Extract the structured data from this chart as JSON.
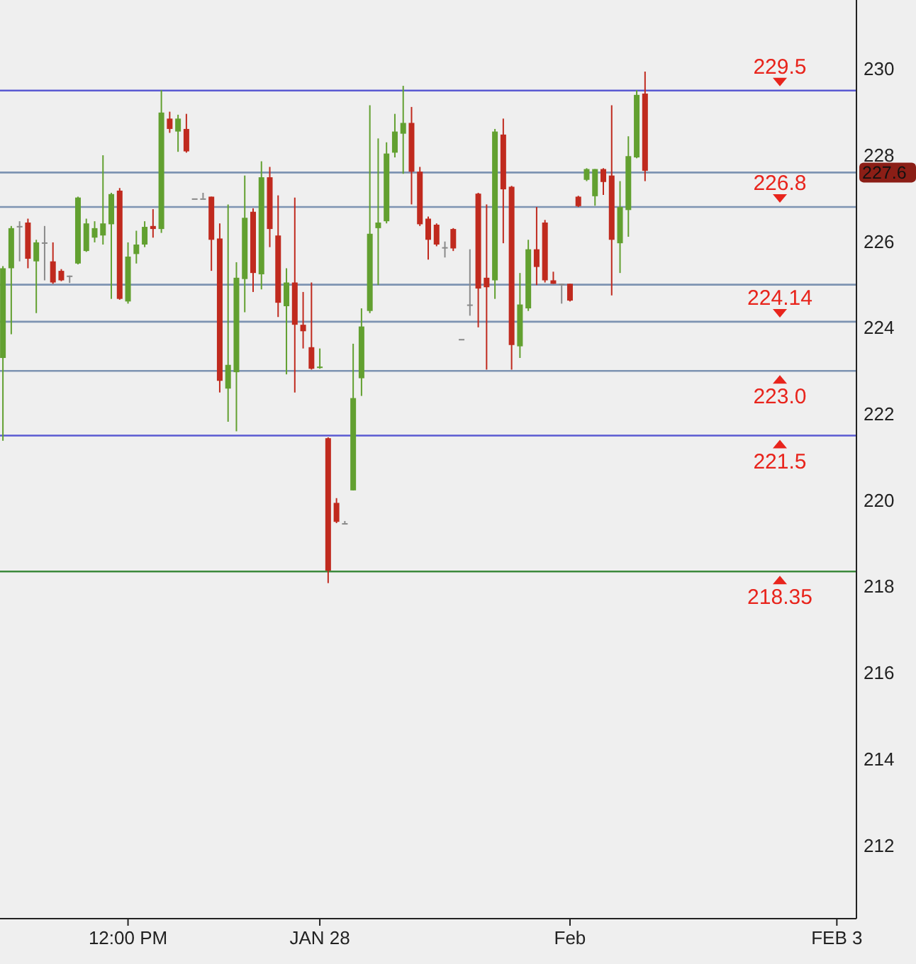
{
  "chart_data": {
    "type": "candlestick",
    "categories": [
      null,
      null,
      null,
      null,
      null,
      null,
      null,
      null,
      null,
      null,
      null,
      null,
      null,
      null,
      null,
      "12:00 PM",
      null,
      null,
      null,
      null,
      null,
      null,
      null,
      null,
      null,
      null,
      null,
      null,
      null,
      null,
      null,
      null,
      null,
      null,
      null,
      null,
      null,
      null,
      "JAN 28",
      null,
      null,
      null,
      null,
      null,
      null,
      null,
      null,
      null,
      null,
      null,
      null,
      null,
      null,
      null,
      null,
      null,
      null,
      null,
      null,
      null,
      null,
      null,
      null,
      null,
      null,
      null,
      null,
      null,
      "Feb",
      null,
      null,
      null,
      null,
      null,
      null,
      null,
      null,
      null,
      null,
      null,
      null,
      null,
      null,
      null,
      null,
      null,
      null,
      null,
      null,
      null,
      null,
      null,
      null,
      null,
      null,
      null,
      null,
      null,
      null,
      null,
      "FEB 3",
      null,
      null
    ],
    "ohlc": [
      [
        223.3,
        225.43,
        221.38,
        225.38
      ],
      [
        225.38,
        226.36,
        223.85,
        226.31
      ],
      [
        226.36,
        226.47,
        225.54,
        226.36
      ],
      [
        226.44,
        226.53,
        225.38,
        225.6
      ],
      [
        225.54,
        226.04,
        224.34,
        225.98
      ],
      [
        225.98,
        226.36,
        225.1,
        225.98
      ],
      [
        225.54,
        225.98,
        225.02,
        225.05
      ],
      [
        225.32,
        225.36,
        225.08,
        225.1
      ],
      [
        225.21,
        225.21,
        225.04,
        225.21
      ],
      [
        225.49,
        227.04,
        225.47,
        227.02
      ],
      [
        225.78,
        226.53,
        225.76,
        226.42
      ],
      [
        226.09,
        226.47,
        225.98,
        226.31
      ],
      [
        226.14,
        228.0,
        225.93,
        226.42
      ],
      [
        226.4,
        227.13,
        224.67,
        227.1
      ],
      [
        227.18,
        227.24,
        224.65,
        224.67
      ],
      [
        224.61,
        225.98,
        224.56,
        225.65
      ],
      [
        225.71,
        226.25,
        225.49,
        225.93
      ],
      [
        225.93,
        226.47,
        225.87,
        226.34
      ],
      [
        226.36,
        226.75,
        226.09,
        226.29
      ],
      [
        226.29,
        229.51,
        226.2,
        228.99
      ],
      [
        228.85,
        229.01,
        228.52,
        228.61
      ],
      [
        228.55,
        228.94,
        228.08,
        228.85
      ],
      [
        228.61,
        228.96,
        228.06,
        228.09
      ],
      [
        227.0,
        227.0,
        227.0,
        227.0
      ],
      [
        227.0,
        227.13,
        227.0,
        227.0
      ],
      [
        227.04,
        227.04,
        225.32,
        226.04
      ],
      [
        226.07,
        226.42,
        222.5,
        222.77
      ],
      [
        222.59,
        226.86,
        221.82,
        223.14
      ],
      [
        222.97,
        225.52,
        221.6,
        225.16
      ],
      [
        225.13,
        227.53,
        224.36,
        226.55
      ],
      [
        226.69,
        226.77,
        224.83,
        225.27
      ],
      [
        225.24,
        227.86,
        224.89,
        227.49
      ],
      [
        227.49,
        227.73,
        225.87,
        226.29
      ],
      [
        226.14,
        227.07,
        224.25,
        224.58
      ],
      [
        224.5,
        225.38,
        222.92,
        225.05
      ],
      [
        225.05,
        227.02,
        222.5,
        224.07
      ],
      [
        224.07,
        224.83,
        223.52,
        223.92
      ],
      [
        223.55,
        225.05,
        223.03,
        223.05
      ],
      [
        223.08,
        223.52,
        223.05,
        223.1
      ],
      [
        221.44,
        221.46,
        218.08,
        218.37
      ],
      [
        219.94,
        220.05,
        219.47,
        219.5
      ],
      [
        219.47,
        219.52,
        219.47,
        219.47
      ],
      [
        220.23,
        223.63,
        220.23,
        222.37
      ],
      [
        222.83,
        224.45,
        222.42,
        224.03
      ],
      [
        224.39,
        229.16,
        224.34,
        226.18
      ],
      [
        226.31,
        228.39,
        224.99,
        226.44
      ],
      [
        226.47,
        228.3,
        226.42,
        228.04
      ],
      [
        228.06,
        228.96,
        227.95,
        228.55
      ],
      [
        228.5,
        229.61,
        227.57,
        228.75
      ],
      [
        228.75,
        229.12,
        226.86,
        227.62
      ],
      [
        227.62,
        227.73,
        226.36,
        226.4
      ],
      [
        226.53,
        226.58,
        225.58,
        226.04
      ],
      [
        226.39,
        226.42,
        225.89,
        225.93
      ],
      [
        225.87,
        226.0,
        225.63,
        225.87
      ],
      [
        226.29,
        226.31,
        225.78,
        225.84
      ],
      [
        223.74,
        223.74,
        223.74,
        223.74
      ],
      [
        224.54,
        225.82,
        224.28,
        224.54
      ],
      [
        227.11,
        227.13,
        224.01,
        224.91
      ],
      [
        225.16,
        226.86,
        223.03,
        224.94
      ],
      [
        225.1,
        228.61,
        224.67,
        228.55
      ],
      [
        228.48,
        228.85,
        225.96,
        227.21
      ],
      [
        227.27,
        227.29,
        223.03,
        223.6
      ],
      [
        223.57,
        225.27,
        223.3,
        224.54
      ],
      [
        224.45,
        226.04,
        224.39,
        225.82
      ],
      [
        225.82,
        226.8,
        224.99,
        225.41
      ],
      [
        226.44,
        226.5,
        225.05,
        225.1
      ],
      [
        225.1,
        225.3,
        225.02,
        225.02
      ],
      [
        225.02,
        225.02,
        224.56,
        225.02
      ],
      [
        225.02,
        225.02,
        224.61,
        224.63
      ],
      [
        227.04,
        227.06,
        226.8,
        226.82
      ],
      [
        227.43,
        227.7,
        227.4,
        227.68
      ],
      [
        227.05,
        227.68,
        226.83,
        227.68
      ],
      [
        227.68,
        227.7,
        227.08,
        227.38
      ],
      [
        227.53,
        229.16,
        224.75,
        226.04
      ],
      [
        225.96,
        227.4,
        225.27,
        226.8
      ],
      [
        226.73,
        228.44,
        226.11,
        227.98
      ],
      [
        227.95,
        229.51,
        227.93,
        229.4
      ],
      [
        229.43,
        229.94,
        227.4,
        227.64
      ],
      null,
      null,
      null,
      null,
      null,
      null,
      null,
      null,
      null,
      null,
      null,
      null,
      null,
      null,
      null,
      null,
      null,
      null,
      null,
      null,
      null,
      null,
      null,
      null,
      null
    ],
    "colors": [
      "#62a030",
      "#62a030",
      "#8a8a8a",
      "#c02a1e",
      "#62a030",
      "#8a8a8a",
      "#c02a1e",
      "#c02a1e",
      "#8a8a8a",
      "#62a030",
      "#62a030",
      "#62a030",
      "#62a030",
      "#62a030",
      "#c02a1e",
      "#62a030",
      "#62a030",
      "#62a030",
      "#c02a1e",
      "#62a030",
      "#c02a1e",
      "#62a030",
      "#c02a1e",
      "#8a8a8a",
      "#8a8a8a",
      "#c02a1e",
      "#c02a1e",
      "#62a030",
      "#62a030",
      "#62a030",
      "#c02a1e",
      "#62a030",
      "#c02a1e",
      "#c02a1e",
      "#62a030",
      "#c02a1e",
      "#c02a1e",
      "#c02a1e",
      "#62a030",
      "#c02a1e",
      "#c02a1e",
      "#8a8a8a",
      "#62a030",
      "#62a030",
      "#62a030",
      "#62a030",
      "#62a030",
      "#62a030",
      "#62a030",
      "#c02a1e",
      "#c02a1e",
      "#c02a1e",
      "#c02a1e",
      "#8a8a8a",
      "#c02a1e",
      "#8a8a8a",
      "#8a8a8a",
      "#c02a1e",
      "#c02a1e",
      "#62a030",
      "#c02a1e",
      "#c02a1e",
      "#62a030",
      "#62a030",
      "#c02a1e",
      "#c02a1e",
      "#c02a1e",
      "#8a8a8a",
      "#c02a1e",
      "#c02a1e",
      "#62a030",
      "#62a030",
      "#c02a1e",
      "#c02a1e",
      "#62a030",
      "#62a030",
      "#62a030",
      "#c02a1e",
      null,
      null,
      null,
      null,
      null,
      null,
      null,
      null,
      null,
      null,
      null,
      null,
      null,
      null,
      null,
      null,
      null,
      null,
      null,
      null,
      null,
      null,
      null,
      null,
      null
    ],
    "ylim": [
      210.3,
      231.6
    ],
    "yticks": [
      212,
      214,
      216,
      218,
      220,
      222,
      224,
      226,
      228,
      230
    ],
    "ref_lines": [
      {
        "axis": "y",
        "value": 229.5,
        "label": "229.5",
        "color": "#5a5ad2"
      },
      {
        "axis": "y",
        "value": 227.6,
        "label": "227.6",
        "color": "#7d93b2"
      },
      {
        "axis": "y",
        "value": 226.8,
        "label": "226.8",
        "color": "#7d93b2"
      },
      {
        "axis": "y",
        "value": 225.0,
        "color": "#7d93b2"
      },
      {
        "axis": "y",
        "value": 224.14,
        "label": "224.14",
        "color": "#7d93b2"
      },
      {
        "axis": "y",
        "value": 223.0,
        "label": "223.0",
        "color": "#7d93b2"
      },
      {
        "axis": "y",
        "value": 221.5,
        "label": "221.5",
        "color": "#5a5ad2"
      },
      {
        "axis": "y",
        "value": 218.35,
        "label": "218.35",
        "color": "#3c8a3c"
      }
    ]
  }
}
